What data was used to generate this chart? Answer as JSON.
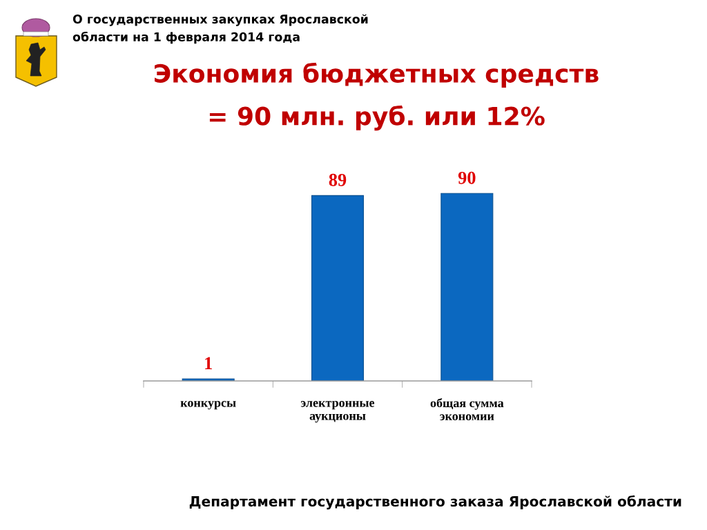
{
  "chart_data": {
    "type": "bar",
    "title": "Экономия бюджетных средств\n= 90 млн. руб. или 12%",
    "categories": [
      "конкурсы",
      "электронные\nаукционы",
      "общая сумма\nэкономии"
    ],
    "values": [
      1,
      89,
      90
    ],
    "color": "#0b68c0",
    "data_labels": true,
    "tick_labels": "x",
    "grid": false,
    "legend": false,
    "annotations": [
      "О государственных закупках Ярославской\nобласти на 1 февраля 2014 года",
      "Департамент государственного заказа Ярославской области"
    ]
  }
}
